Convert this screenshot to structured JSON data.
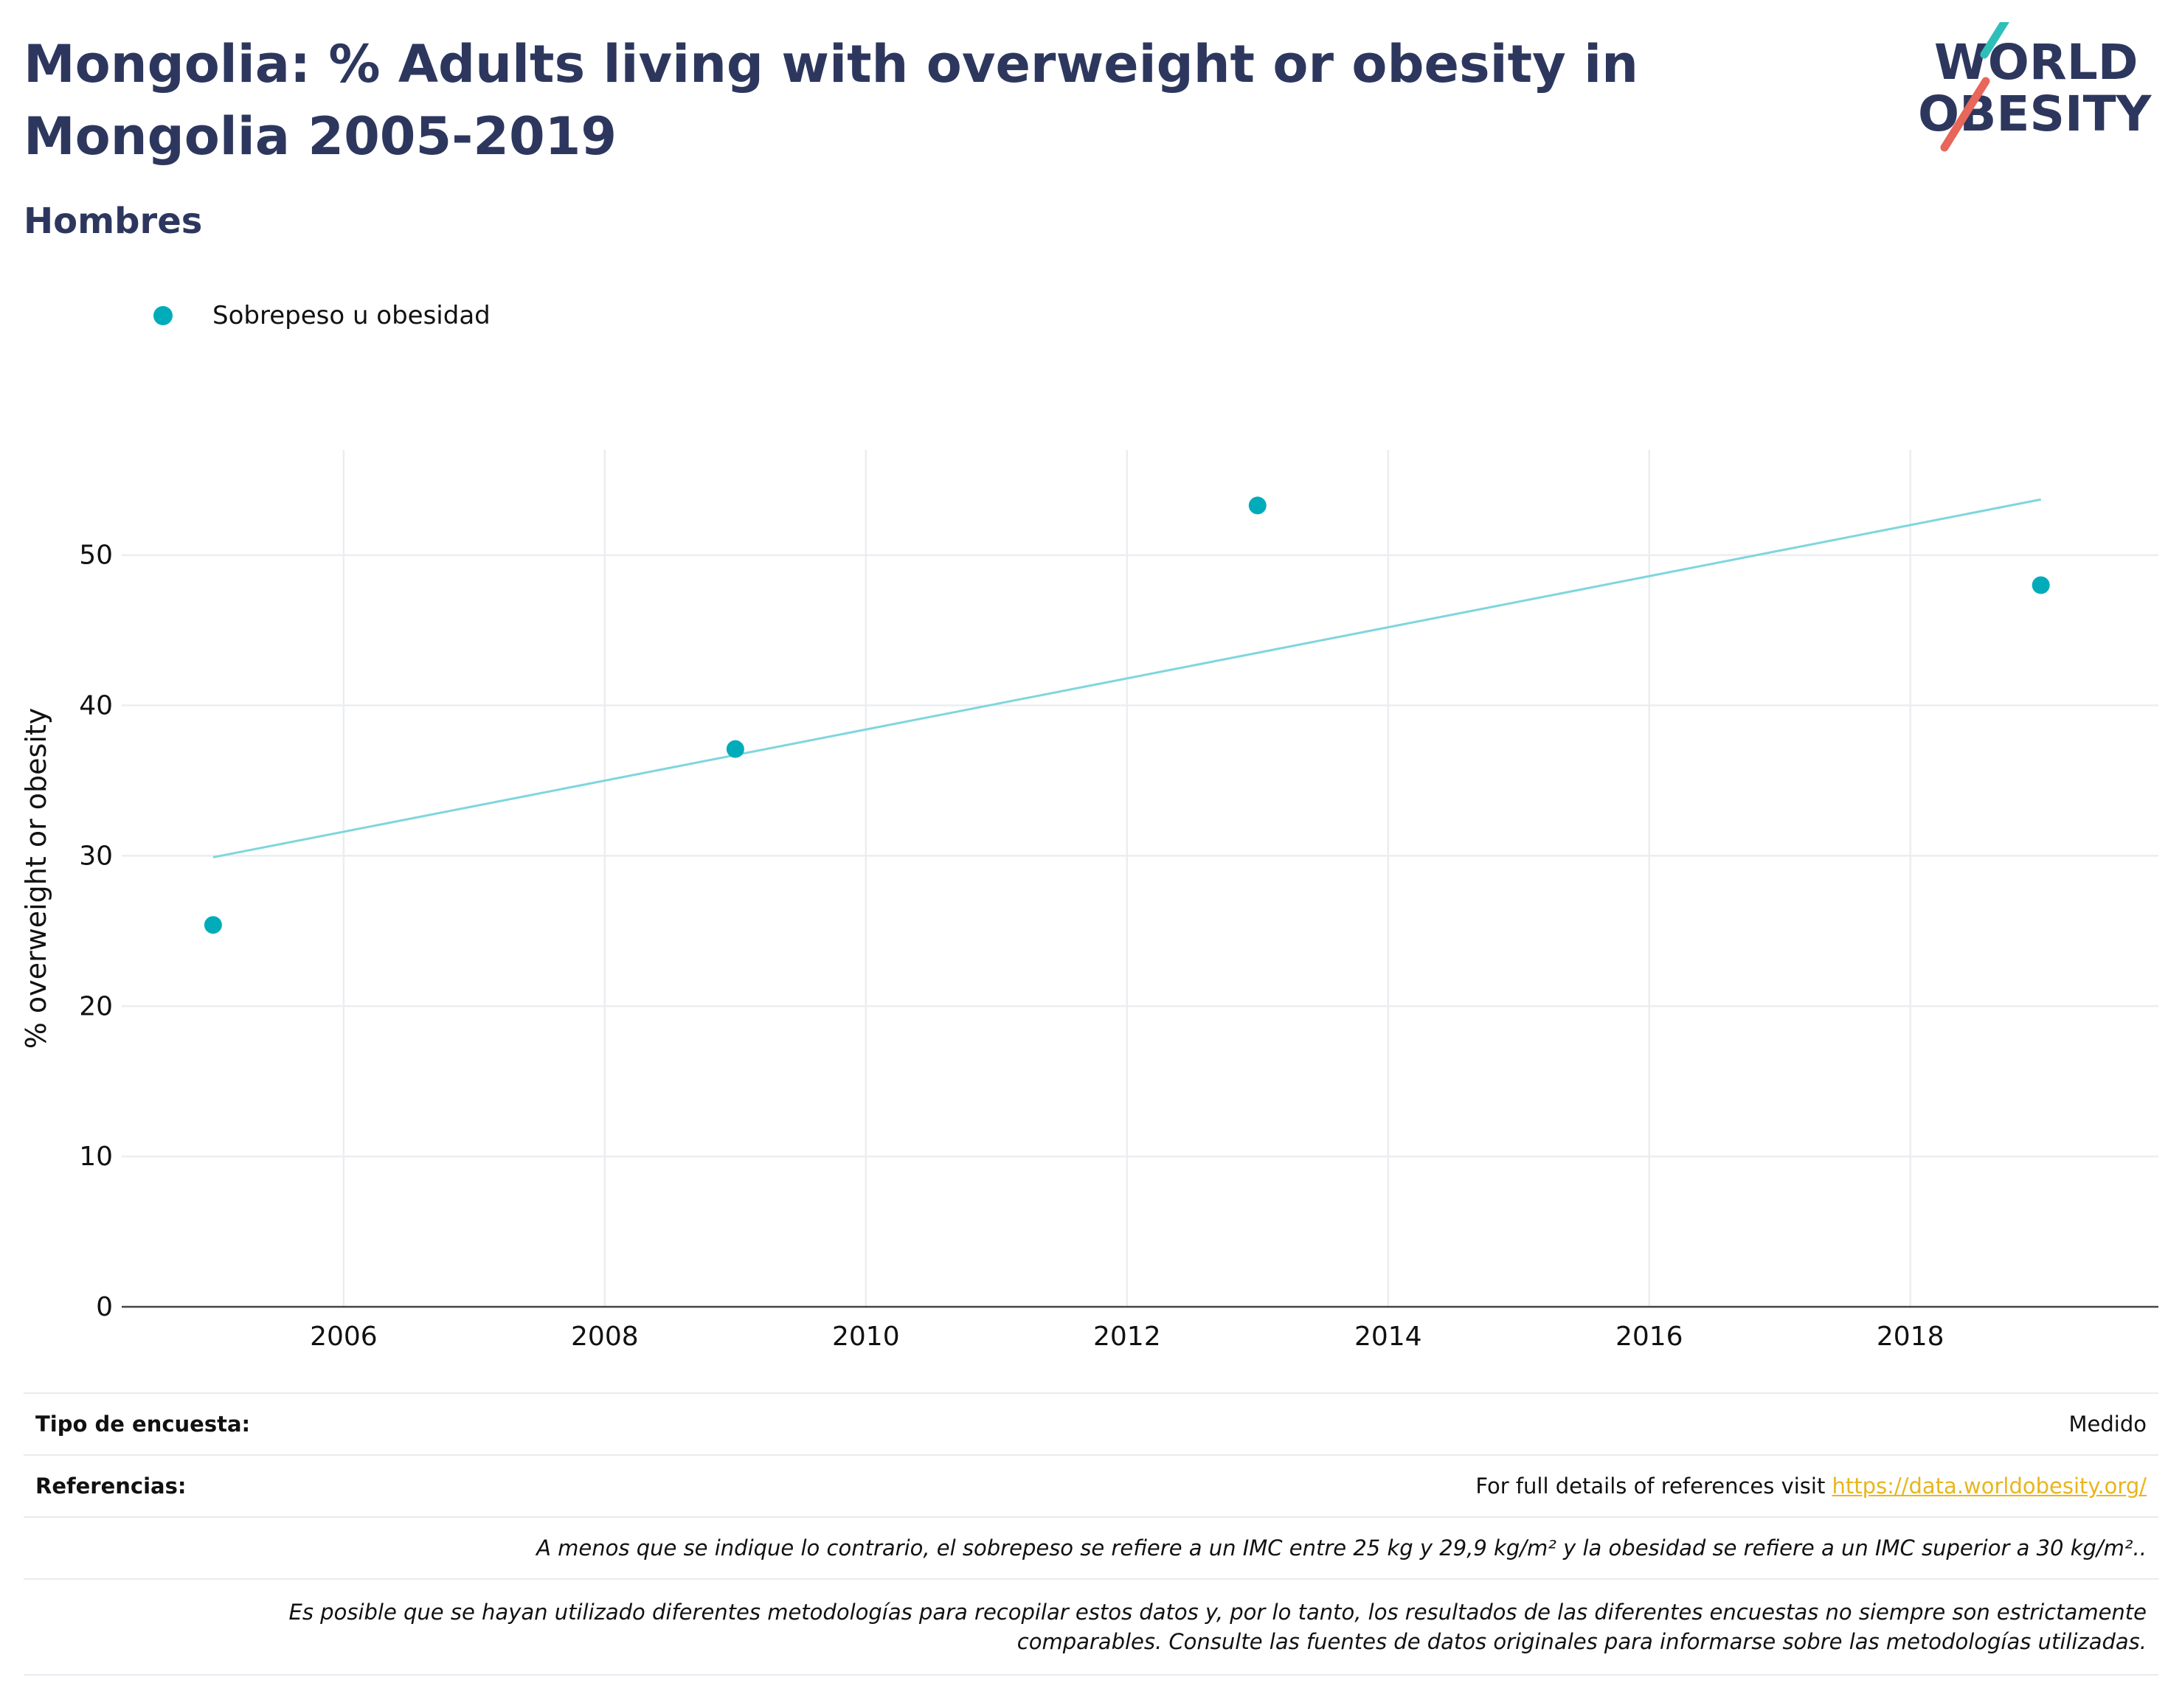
{
  "title": "Mongolia: % Adults living with overweight or obesity in Mongolia 2005-2019",
  "subtitle": "Hombres",
  "logo": {
    "line1": "WORLD",
    "line2": "OBESITY"
  },
  "legend": {
    "label": "Sobrepeso u obesidad"
  },
  "colors": {
    "title": "#2d375e",
    "series": "#00acba",
    "trend": "#7fd6dd",
    "link": "#e8b51d",
    "logo_teal": "#2fbfb9",
    "logo_red": "#e8665a"
  },
  "chart_data": {
    "type": "scatter",
    "ylabel": "% overweight or obesity",
    "xlabel": "",
    "xlim": [
      2004.3,
      2019.9
    ],
    "ylim": [
      0,
      57
    ],
    "x_ticks": [
      2006,
      2008,
      2010,
      2012,
      2014,
      2016,
      2018
    ],
    "y_ticks": [
      0,
      10,
      20,
      30,
      40,
      50
    ],
    "grid": true,
    "legend_position": "top-left",
    "series": [
      {
        "name": "Sobrepeso u obesidad",
        "points": [
          {
            "x": 2005,
            "y": 25.4
          },
          {
            "x": 2009,
            "y": 37.1
          },
          {
            "x": 2013,
            "y": 53.3
          },
          {
            "x": 2019,
            "y": 48.0
          }
        ]
      }
    ],
    "trendline": {
      "x": [
        2005,
        2019
      ],
      "y": [
        29.9,
        53.7
      ]
    }
  },
  "footer": {
    "survey_label": "Tipo de encuesta:",
    "survey_value": "Medido",
    "refs_label": "Referencias:",
    "refs_text": "For full details of references visit ",
    "refs_link": "https://data.worldobesity.org/",
    "note1": "A menos que se indique lo contrario, el sobrepeso se refiere a un IMC entre 25 kg y 29,9 kg/m² y la obesidad se refiere a un IMC superior a 30 kg/m²..",
    "note2_line1": "Es posible que se hayan utilizado diferentes metodologías para recopilar estos datos y, por lo tanto, los resultados de las diferentes encuestas no siempre son estrictamente",
    "note2_line2": "comparables. Consulte las fuentes de datos originales para informarse sobre las metodologías utilizadas."
  }
}
